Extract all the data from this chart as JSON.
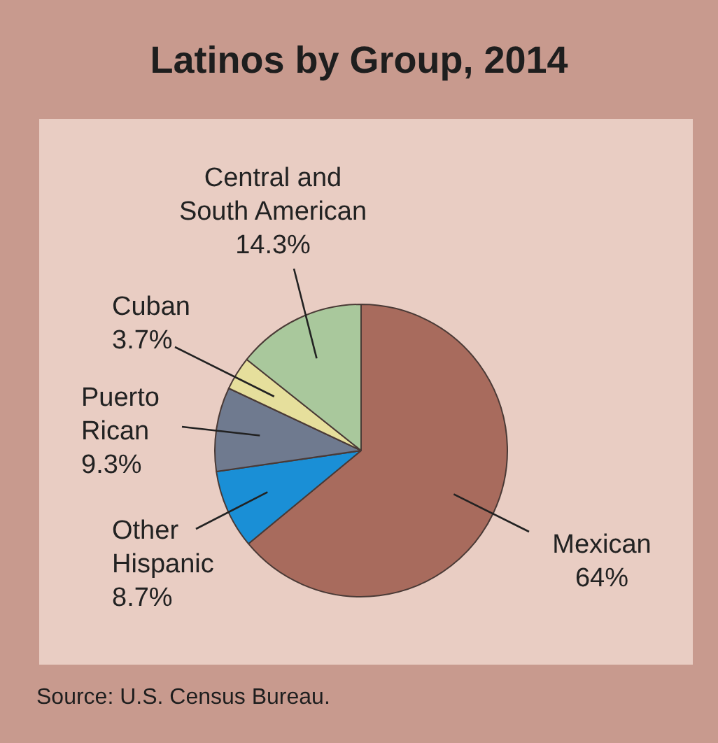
{
  "chart_data": {
    "type": "pie",
    "title": "Latinos by Group, 2014",
    "categories": [
      "Mexican",
      "Other Hispanic",
      "Puerto Rican",
      "Cuban",
      "Central and South American"
    ],
    "values": [
      64,
      8.7,
      9.3,
      3.7,
      14.3
    ],
    "value_labels": [
      "64%",
      "8.7%",
      "9.3%",
      "3.7%",
      "14.3%"
    ],
    "colors": [
      "#a86b5d",
      "#1a8fd6",
      "#6f7a8f",
      "#e6df9c",
      "#a9c89c"
    ],
    "legend": false,
    "annotations": [
      "Source: U.S. Census Bureau."
    ]
  }
}
